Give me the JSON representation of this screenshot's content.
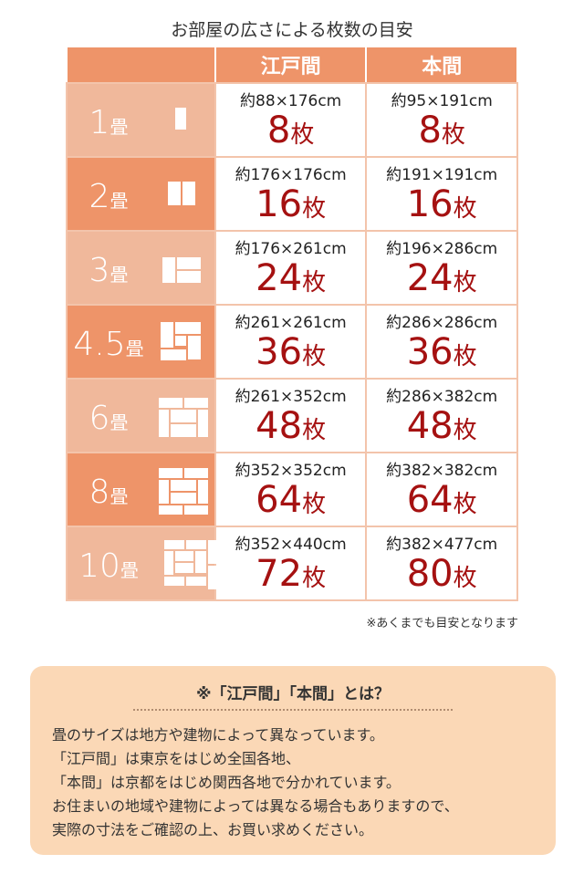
{
  "title": "お部屋の広さによる枚数の目安",
  "headers": [
    "",
    "江戸間",
    "本間"
  ],
  "rows": [
    {
      "size": "1",
      "unit": "畳",
      "edo_dim": "約88×176cm",
      "edo_count": "8",
      "hon_dim": "約95×191cm",
      "hon_count": "8",
      "icon": "tatami-1-icon"
    },
    {
      "size": "2",
      "unit": "畳",
      "edo_dim": "約176×176cm",
      "edo_count": "16",
      "hon_dim": "約191×191cm",
      "hon_count": "16",
      "icon": "tatami-2-icon"
    },
    {
      "size": "3",
      "unit": "畳",
      "edo_dim": "約176×261cm",
      "edo_count": "24",
      "hon_dim": "約196×286cm",
      "hon_count": "24",
      "icon": "tatami-3-icon"
    },
    {
      "size": "4.5",
      "unit": "畳",
      "edo_dim": "約261×261cm",
      "edo_count": "36",
      "hon_dim": "約286×286cm",
      "hon_count": "36",
      "icon": "tatami-4.5-icon"
    },
    {
      "size": "6",
      "unit": "畳",
      "edo_dim": "約261×352cm",
      "edo_count": "48",
      "hon_dim": "約286×382cm",
      "hon_count": "48",
      "icon": "tatami-6-icon"
    },
    {
      "size": "8",
      "unit": "畳",
      "edo_dim": "約352×352cm",
      "edo_count": "64",
      "hon_dim": "約382×382cm",
      "hon_count": "64",
      "icon": "tatami-8-icon"
    },
    {
      "size": "10",
      "unit": "畳",
      "edo_dim": "約352×440cm",
      "edo_count": "72",
      "hon_dim": "約382×477cm",
      "hon_count": "80",
      "icon": "tatami-10-icon"
    }
  ],
  "count_unit": "枚",
  "footnote": "※あくまでも目安となります",
  "note": {
    "title": "※「江戸間」「本間」とは？",
    "lines": [
      "畳のサイズは地方や建物によって異なっています。",
      "「江戸間」は東京をはじめ全国各地、",
      "「本間」は京都をはじめ関西各地で分かれています。",
      "お住まいの地域や建物によっては異なる場合もありますので、",
      "実際の寸法をご確認の上、お買い求めください。"
    ]
  },
  "colors": {
    "header": "#ee9469",
    "row_light": "#f0b89b",
    "count_red": "#a51111",
    "note_bg": "#fbd8b6"
  }
}
